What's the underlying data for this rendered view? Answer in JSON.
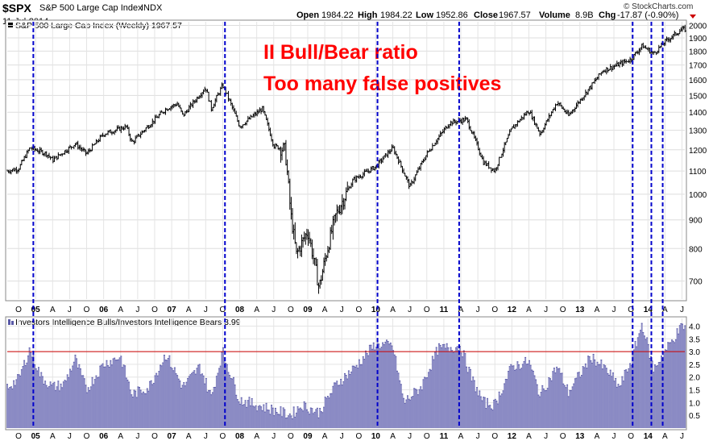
{
  "header": {
    "symbol": "$SPX",
    "name": "S&P 500 Large Cap Index",
    "exchange": "INDX",
    "date": "11-Jul-2014",
    "quote": {
      "open_label": "Open",
      "open": "1984.22",
      "high_label": "High",
      "high": "1984.22",
      "low_label": "Low",
      "low": "1952.86",
      "close_label": "Close",
      "close": "1967.57",
      "volume_label": "Volume",
      "volume": "8.9B",
      "chg_label": "Chg",
      "chg": "-17.87 (-0.90%)"
    },
    "copyright": "© StockCharts.com"
  },
  "annotation": {
    "line1": "II Bull/Bear ratio",
    "line2": "Too many false positives"
  },
  "colors": {
    "signal_line": "#0000cc",
    "threshold_line": "#cc0000",
    "area_fill": "#8b8bc4",
    "area_edge": "#5a5aa8",
    "annotation": "#ff0000",
    "price_bars": "#000000"
  },
  "chart_data": [
    {
      "type": "line",
      "title": "S&P 500 Large Cap Index (Weekly) 1967.57",
      "y_scale": "log",
      "ylim": [
        650,
        2030
      ],
      "yticks": [
        700,
        800,
        900,
        1000,
        1100,
        1200,
        1300,
        1400,
        1500,
        1600,
        1700,
        1800,
        1900,
        2000
      ],
      "x_axis_labels": [
        "O",
        "05",
        "A",
        "J",
        "O",
        "06",
        "A",
        "J",
        "O",
        "07",
        "A",
        "J",
        "O",
        "08",
        "A",
        "J",
        "O",
        "09",
        "A",
        "J",
        "O",
        "10",
        "A",
        "J",
        "O",
        "11",
        "A",
        "J",
        "O",
        "12",
        "A",
        "J",
        "O",
        "13",
        "A",
        "J",
        "O",
        "14",
        "A",
        "J"
      ],
      "series": [
        {
          "values": [
            {
              "x": "2004-08",
              "y": 1100
            },
            {
              "x": "2004-10",
              "y": 1110
            },
            {
              "x": "2004-12",
              "y": 1210
            },
            {
              "x": "2005-03",
              "y": 1180
            },
            {
              "x": "2005-04",
              "y": 1150
            },
            {
              "x": "2005-08",
              "y": 1230
            },
            {
              "x": "2005-10",
              "y": 1180
            },
            {
              "x": "2006-01",
              "y": 1280
            },
            {
              "x": "2006-05",
              "y": 1320
            },
            {
              "x": "2006-06",
              "y": 1235
            },
            {
              "x": "2006-12",
              "y": 1420
            },
            {
              "x": "2007-02",
              "y": 1450
            },
            {
              "x": "2007-03",
              "y": 1380
            },
            {
              "x": "2007-07",
              "y": 1550
            },
            {
              "x": "2007-08",
              "y": 1420
            },
            {
              "x": "2007-10",
              "y": 1565
            },
            {
              "x": "2008-01",
              "y": 1320
            },
            {
              "x": "2008-05",
              "y": 1420
            },
            {
              "x": "2008-07",
              "y": 1220
            },
            {
              "x": "2008-09",
              "y": 1200
            },
            {
              "x": "2008-10",
              "y": 920
            },
            {
              "x": "2008-11",
              "y": 780
            },
            {
              "x": "2009-01",
              "y": 860
            },
            {
              "x": "2009-03",
              "y": 680
            },
            {
              "x": "2009-06",
              "y": 920
            },
            {
              "x": "2009-09",
              "y": 1060
            },
            {
              "x": "2010-01",
              "y": 1120
            },
            {
              "x": "2010-04",
              "y": 1210
            },
            {
              "x": "2010-07",
              "y": 1030
            },
            {
              "x": "2010-10",
              "y": 1180
            },
            {
              "x": "2011-02",
              "y": 1340
            },
            {
              "x": "2011-05",
              "y": 1360
            },
            {
              "x": "2011-08",
              "y": 1140
            },
            {
              "x": "2011-10",
              "y": 1100
            },
            {
              "x": "2012-01",
              "y": 1310
            },
            {
              "x": "2012-04",
              "y": 1410
            },
            {
              "x": "2012-06",
              "y": 1280
            },
            {
              "x": "2012-09",
              "y": 1460
            },
            {
              "x": "2012-11",
              "y": 1380
            },
            {
              "x": "2013-03",
              "y": 1560
            },
            {
              "x": "2013-05",
              "y": 1660
            },
            {
              "x": "2013-07",
              "y": 1690
            },
            {
              "x": "2013-10",
              "y": 1740
            },
            {
              "x": "2013-12",
              "y": 1840
            },
            {
              "x": "2014-02",
              "y": 1780
            },
            {
              "x": "2014-04",
              "y": 1870
            },
            {
              "x": "2014-07",
              "y": 1968
            }
          ]
        }
      ]
    },
    {
      "type": "area",
      "title": "Investors Intelligence Bulls/Investors Intelligence Bears 3.99",
      "ylim": [
        0,
        4.3
      ],
      "yticks": [
        0.5,
        1.0,
        1.5,
        2.0,
        2.5,
        3.0,
        3.5,
        4.0
      ],
      "threshold": 3.0,
      "x_axis_labels": [
        "O",
        "05",
        "A",
        "J",
        "O",
        "06",
        "A",
        "J",
        "O",
        "07",
        "A",
        "J",
        "O",
        "08",
        "A",
        "J",
        "O",
        "09",
        "A",
        "J",
        "O",
        "10",
        "A",
        "J",
        "O",
        "11",
        "A",
        "J",
        "O",
        "12",
        "A",
        "J",
        "O",
        "13",
        "A",
        "J",
        "O",
        "14",
        "A",
        "J"
      ],
      "series": [
        {
          "values": [
            {
              "x": "2004-08",
              "y": 1.6
            },
            {
              "x": "2004-10",
              "y": 1.9
            },
            {
              "x": "2004-12",
              "y": 3.1
            },
            {
              "x": "2005-02",
              "y": 2.0
            },
            {
              "x": "2005-04",
              "y": 1.6
            },
            {
              "x": "2005-06",
              "y": 1.7
            },
            {
              "x": "2005-08",
              "y": 2.7
            },
            {
              "x": "2005-10",
              "y": 1.5
            },
            {
              "x": "2006-01",
              "y": 2.5
            },
            {
              "x": "2006-04",
              "y": 2.8
            },
            {
              "x": "2006-06",
              "y": 1.3
            },
            {
              "x": "2006-09",
              "y": 1.6
            },
            {
              "x": "2006-12",
              "y": 2.9
            },
            {
              "x": "2007-03",
              "y": 1.6
            },
            {
              "x": "2007-06",
              "y": 2.4
            },
            {
              "x": "2007-08",
              "y": 1.2
            },
            {
              "x": "2007-10",
              "y": 3.0
            },
            {
              "x": "2008-01",
              "y": 1.1
            },
            {
              "x": "2008-04",
              "y": 0.9
            },
            {
              "x": "2008-07",
              "y": 0.7
            },
            {
              "x": "2008-10",
              "y": 0.5
            },
            {
              "x": "2008-12",
              "y": 0.9
            },
            {
              "x": "2009-03",
              "y": 0.6
            },
            {
              "x": "2009-06",
              "y": 1.7
            },
            {
              "x": "2009-09",
              "y": 2.3
            },
            {
              "x": "2010-01",
              "y": 3.3
            },
            {
              "x": "2010-04",
              "y": 3.2
            },
            {
              "x": "2010-06",
              "y": 1.0
            },
            {
              "x": "2010-09",
              "y": 1.6
            },
            {
              "x": "2010-12",
              "y": 3.1
            },
            {
              "x": "2011-04",
              "y": 3.2
            },
            {
              "x": "2011-06",
              "y": 1.9
            },
            {
              "x": "2011-08",
              "y": 1.0
            },
            {
              "x": "2011-10",
              "y": 0.9
            },
            {
              "x": "2012-01",
              "y": 2.4
            },
            {
              "x": "2012-04",
              "y": 2.6
            },
            {
              "x": "2012-06",
              "y": 1.3
            },
            {
              "x": "2012-09",
              "y": 2.4
            },
            {
              "x": "2012-11",
              "y": 1.4
            },
            {
              "x": "2013-03",
              "y": 2.8
            },
            {
              "x": "2013-06",
              "y": 2.2
            },
            {
              "x": "2013-08",
              "y": 1.6
            },
            {
              "x": "2013-10",
              "y": 2.6
            },
            {
              "x": "2013-12",
              "y": 4.1
            },
            {
              "x": "2014-02",
              "y": 2.3
            },
            {
              "x": "2014-04",
              "y": 3.0
            },
            {
              "x": "2014-07",
              "y": 3.99
            }
          ]
        }
      ]
    }
  ]
}
